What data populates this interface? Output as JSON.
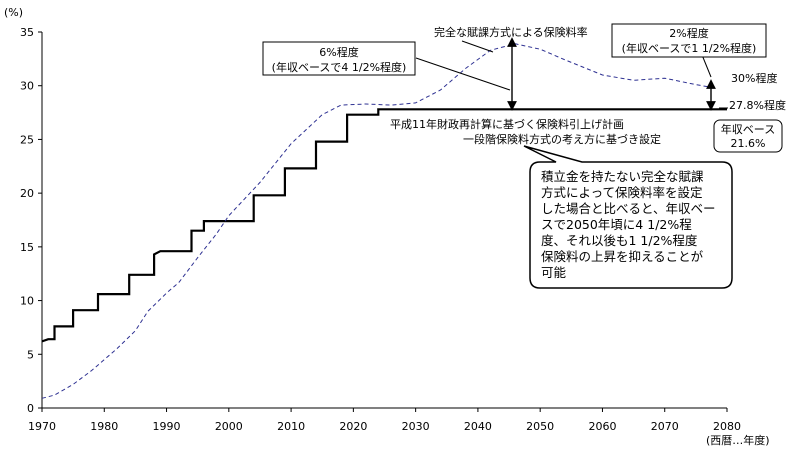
{
  "chart_data": {
    "type": "line",
    "title": "",
    "xlabel": "(西暦…年度)",
    "ylabel": "(%)",
    "xlim": [
      1970,
      2080
    ],
    "ylim": [
      0,
      35
    ],
    "x_ticks": [
      "1970",
      "1980",
      "1990",
      "2000",
      "2010",
      "2020",
      "2030",
      "2040",
      "2050",
      "2060",
      "2070",
      "2080"
    ],
    "y_ticks": [
      "0",
      "5",
      "10",
      "15",
      "20",
      "25",
      "30",
      "35"
    ],
    "grid": false,
    "series": [
      {
        "name": "",
        "style": "solid-step",
        "color": "#000000",
        "points": [
          [
            1970,
            6.2
          ],
          [
            1971,
            6.4
          ],
          [
            1972,
            6.4
          ],
          [
            1972,
            7.6
          ],
          [
            1974,
            7.6
          ],
          [
            1974,
            7.6
          ],
          [
            1975,
            7.6
          ],
          [
            1975,
            9.1
          ],
          [
            1978,
            9.1
          ],
          [
            1978,
            9.1
          ],
          [
            1979,
            9.1
          ],
          [
            1979,
            10.6
          ],
          [
            1983,
            10.6
          ],
          [
            1983,
            10.6
          ],
          [
            1984,
            10.6
          ],
          [
            1984,
            12.4
          ],
          [
            1987,
            12.4
          ],
          [
            1987,
            12.4
          ],
          [
            1988,
            12.4
          ],
          [
            1988,
            14.3
          ],
          [
            1989,
            14.6
          ],
          [
            1989,
            14.6
          ],
          [
            1990,
            14.6
          ],
          [
            1993,
            14.6
          ],
          [
            1994,
            14.6
          ],
          [
            1994,
            16.5
          ],
          [
            1995,
            16.5
          ],
          [
            1996,
            16.5
          ],
          [
            1996,
            17.4
          ],
          [
            2003,
            17.4
          ],
          [
            2004,
            17.4
          ],
          [
            2004,
            19.8
          ],
          [
            2008,
            19.8
          ],
          [
            2009,
            19.8
          ],
          [
            2009,
            22.3
          ],
          [
            2013,
            22.3
          ],
          [
            2014,
            22.3
          ],
          [
            2014,
            24.8
          ],
          [
            2018,
            24.8
          ],
          [
            2019,
            24.8
          ],
          [
            2019,
            27.3
          ],
          [
            2024,
            27.3
          ],
          [
            2024,
            27.8
          ],
          [
            2080,
            27.8
          ]
        ]
      },
      {
        "name": "",
        "style": "dashed",
        "color": "#2e3192",
        "points": [
          [
            1970,
            0.9
          ],
          [
            1972,
            1.2
          ],
          [
            1975,
            2.2
          ],
          [
            1978,
            3.5
          ],
          [
            1982,
            5.5
          ],
          [
            1985,
            7.2
          ],
          [
            1987,
            9.0
          ],
          [
            1990,
            10.7
          ],
          [
            1992,
            11.7
          ],
          [
            1995,
            14.0
          ],
          [
            1998,
            16.2
          ],
          [
            2000,
            17.9
          ],
          [
            2005,
            21.0
          ],
          [
            2010,
            24.6
          ],
          [
            2015,
            27.3
          ],
          [
            2018,
            28.2
          ],
          [
            2022,
            28.3
          ],
          [
            2026,
            28.2
          ],
          [
            2030,
            28.4
          ],
          [
            2034,
            29.6
          ],
          [
            2038,
            31.6
          ],
          [
            2042,
            33.3
          ],
          [
            2046,
            33.9
          ],
          [
            2050,
            33.4
          ],
          [
            2054,
            32.4
          ],
          [
            2060,
            31.0
          ],
          [
            2065,
            30.5
          ],
          [
            2070,
            30.7
          ],
          [
            2075,
            30.1
          ],
          [
            2078,
            29.8
          ]
        ]
      }
    ],
    "annotations": [
      {
        "text": "完全な賦課方式による保険料率"
      },
      {
        "text": "2%程度"
      },
      {
        "text": "(年収ベースで1 1/2%程度)"
      },
      {
        "text": "6%程度"
      },
      {
        "text": "(年収ベースで4 1/2%程度)"
      },
      {
        "text": "30%程度"
      },
      {
        "text": "27.8%程度"
      },
      {
        "text": "平成11年財政再計算に基づく保険料引上げ計画"
      },
      {
        "text": "一段階保険料方式の考え方に基づき設定"
      },
      {
        "text": "年収ベース"
      },
      {
        "text": "21.6%"
      }
    ],
    "callout_lines": [
      "積立金を持たない完全な賦課",
      "方式によって保険料率を設定",
      "した場合と比べると、年収ベー",
      "スで2050年頃に4 1/2%程",
      "度、それ以後も1 1/2%程度",
      "保険料の上昇を抑えることが",
      "可能"
    ]
  }
}
